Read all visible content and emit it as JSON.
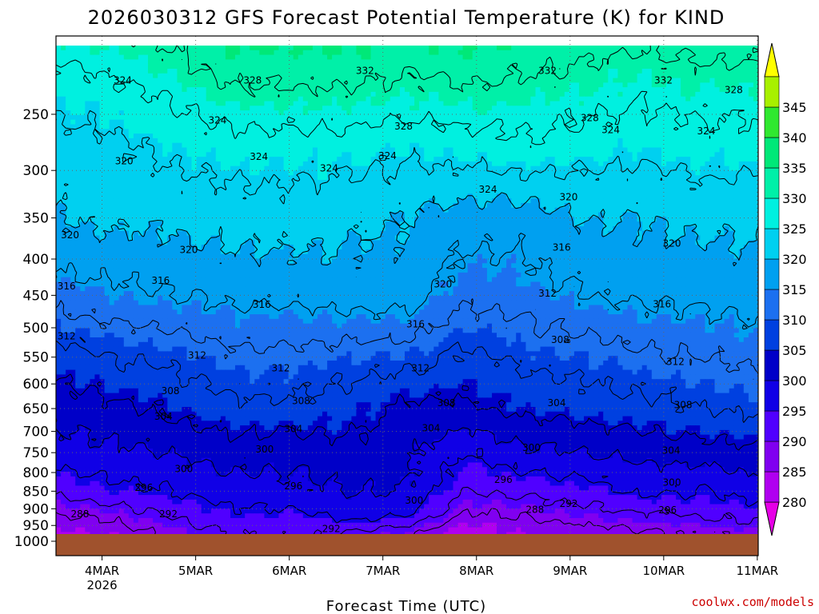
{
  "title": "2026030312 GFS Forecast Potential Temperature (K) for KIND",
  "xlabel": "Forecast Time (UTC)",
  "credit": "coolwx.com/models",
  "colors": {
    "ground": "#a0522d",
    "grid": "#666666",
    "contour": "#000000"
  },
  "chart_data": {
    "type": "heatmap",
    "variable": "Potential Temperature (K)",
    "y_axis": {
      "units": "hPa",
      "ticks": [
        250,
        300,
        350,
        400,
        450,
        500,
        550,
        600,
        650,
        700,
        750,
        800,
        850,
        900,
        950,
        1000
      ],
      "range": [
        1000,
        200
      ]
    },
    "x_axis": {
      "ticks": [
        {
          "label": "4MAR",
          "sub": "2026"
        },
        {
          "label": "5MAR",
          "sub": ""
        },
        {
          "label": "6MAR",
          "sub": ""
        },
        {
          "label": "7MAR",
          "sub": ""
        },
        {
          "label": "8MAR",
          "sub": ""
        },
        {
          "label": "9MAR",
          "sub": ""
        },
        {
          "label": "10MAR",
          "sub": ""
        },
        {
          "label": "11MAR",
          "sub": ""
        }
      ]
    },
    "colorbar": {
      "levels": [
        280,
        285,
        290,
        295,
        300,
        305,
        310,
        315,
        320,
        325,
        330,
        335,
        340,
        345
      ],
      "colors": [
        "#e600e6",
        "#b000f0",
        "#8000f0",
        "#5000ff",
        "#1000e6",
        "#0000c8",
        "#0040e0",
        "#1c70f0",
        "#00a0f0",
        "#00d0f0",
        "#00f0e0",
        "#00f0a8",
        "#00e878",
        "#30e830",
        "#a8f000",
        "#ffff00"
      ]
    },
    "contour_levels": [
      288,
      292,
      296,
      300,
      304,
      308,
      312,
      316,
      320,
      324,
      328,
      332
    ],
    "theta_by_pressure": [
      {
        "p": 975,
        "theta": [
          284,
          285,
          289,
          292,
          293,
          291,
          289,
          282,
          285,
          286,
          287,
          288,
          289
        ]
      },
      {
        "p": 925,
        "theta": [
          287,
          289,
          292,
          295,
          294,
          297,
          296,
          287,
          288,
          290,
          291,
          292,
          293
        ]
      },
      {
        "p": 850,
        "theta": [
          293,
          295,
          296,
          298,
          299,
          300,
          300,
          292,
          293,
          294,
          297,
          296,
          298
        ]
      },
      {
        "p": 750,
        "theta": [
          298,
          299,
          300,
          302,
          301,
          303,
          301,
          296,
          299,
          300,
          301,
          302,
          303
        ]
      },
      {
        "p": 650,
        "theta": [
          302,
          303,
          305,
          307,
          307,
          306,
          303,
          303,
          305,
          306,
          307,
          308,
          309
        ]
      },
      {
        "p": 550,
        "theta": [
          306,
          308,
          309,
          311,
          311,
          310,
          310,
          307,
          309,
          310,
          311,
          312,
          313
        ]
      },
      {
        "p": 450,
        "theta": [
          314,
          315,
          316,
          317,
          317,
          318,
          318,
          313,
          314,
          316,
          317,
          317,
          318
        ]
      },
      {
        "p": 350,
        "theta": [
          320,
          321,
          321,
          322,
          322,
          321,
          320,
          318,
          318,
          320,
          320,
          321,
          321
        ]
      },
      {
        "p": 280,
        "theta": [
          322,
          323,
          325,
          326,
          326,
          326,
          325,
          326,
          327,
          326,
          325,
          326,
          326
        ]
      },
      {
        "p": 220,
        "theta": [
          327,
          328,
          330,
          333,
          333,
          333,
          332,
          333,
          332,
          331,
          330,
          331,
          331
        ]
      }
    ],
    "contour_labels": [
      {
        "v": "324",
        "t": 0.095,
        "p": 224
      },
      {
        "v": "328",
        "t": 0.28,
        "p": 224
      },
      {
        "v": "332",
        "t": 0.44,
        "p": 217
      },
      {
        "v": "332",
        "t": 0.7,
        "p": 217
      },
      {
        "v": "332",
        "t": 0.865,
        "p": 224
      },
      {
        "v": "328",
        "t": 0.965,
        "p": 231
      },
      {
        "v": "324",
        "t": 0.23,
        "p": 255
      },
      {
        "v": "328",
        "t": 0.495,
        "p": 260
      },
      {
        "v": "328",
        "t": 0.76,
        "p": 253
      },
      {
        "v": "324",
        "t": 0.79,
        "p": 263
      },
      {
        "v": "324",
        "t": 0.926,
        "p": 264
      },
      {
        "v": "320",
        "t": 0.097,
        "p": 291
      },
      {
        "v": "324",
        "t": 0.289,
        "p": 287
      },
      {
        "v": "324",
        "t": 0.389,
        "p": 298
      },
      {
        "v": "324",
        "t": 0.472,
        "p": 286
      },
      {
        "v": "324",
        "t": 0.615,
        "p": 319
      },
      {
        "v": "320",
        "t": 0.73,
        "p": 327
      },
      {
        "v": "320",
        "t": 0.02,
        "p": 370
      },
      {
        "v": "320",
        "t": 0.189,
        "p": 388
      },
      {
        "v": "316",
        "t": 0.72,
        "p": 385
      },
      {
        "v": "320",
        "t": 0.877,
        "p": 380
      },
      {
        "v": "316",
        "t": 0.015,
        "p": 437
      },
      {
        "v": "316",
        "t": 0.149,
        "p": 429
      },
      {
        "v": "316",
        "t": 0.293,
        "p": 464
      },
      {
        "v": "320",
        "t": 0.551,
        "p": 434
      },
      {
        "v": "312",
        "t": 0.7,
        "p": 447
      },
      {
        "v": "316",
        "t": 0.863,
        "p": 463
      },
      {
        "v": "312",
        "t": 0.015,
        "p": 514
      },
      {
        "v": "316",
        "t": 0.512,
        "p": 494
      },
      {
        "v": "312",
        "t": 0.201,
        "p": 547
      },
      {
        "v": "308",
        "t": 0.718,
        "p": 520
      },
      {
        "v": "312",
        "t": 0.32,
        "p": 570
      },
      {
        "v": "312",
        "t": 0.519,
        "p": 570
      },
      {
        "v": "312",
        "t": 0.882,
        "p": 558
      },
      {
        "v": "308",
        "t": 0.163,
        "p": 614
      },
      {
        "v": "308",
        "t": 0.349,
        "p": 634
      },
      {
        "v": "308",
        "t": 0.556,
        "p": 638
      },
      {
        "v": "304",
        "t": 0.713,
        "p": 638
      },
      {
        "v": "308",
        "t": 0.893,
        "p": 642
      },
      {
        "v": "304",
        "t": 0.153,
        "p": 667
      },
      {
        "v": "304",
        "t": 0.338,
        "p": 694
      },
      {
        "v": "304",
        "t": 0.534,
        "p": 693
      },
      {
        "v": "300",
        "t": 0.297,
        "p": 742
      },
      {
        "v": "300",
        "t": 0.677,
        "p": 738
      },
      {
        "v": "304",
        "t": 0.876,
        "p": 745
      },
      {
        "v": "300",
        "t": 0.182,
        "p": 791
      },
      {
        "v": "296",
        "t": 0.338,
        "p": 836
      },
      {
        "v": "296",
        "t": 0.637,
        "p": 819
      },
      {
        "v": "300",
        "t": 0.877,
        "p": 826
      },
      {
        "v": "296",
        "t": 0.125,
        "p": 840
      },
      {
        "v": "300",
        "t": 0.51,
        "p": 876
      },
      {
        "v": "292",
        "t": 0.73,
        "p": 885
      },
      {
        "v": "288",
        "t": 0.034,
        "p": 915
      },
      {
        "v": "292",
        "t": 0.16,
        "p": 915
      },
      {
        "v": "288",
        "t": 0.682,
        "p": 902
      },
      {
        "v": "296",
        "t": 0.871,
        "p": 904
      },
      {
        "v": "292",
        "t": 0.392,
        "p": 960
      }
    ]
  }
}
